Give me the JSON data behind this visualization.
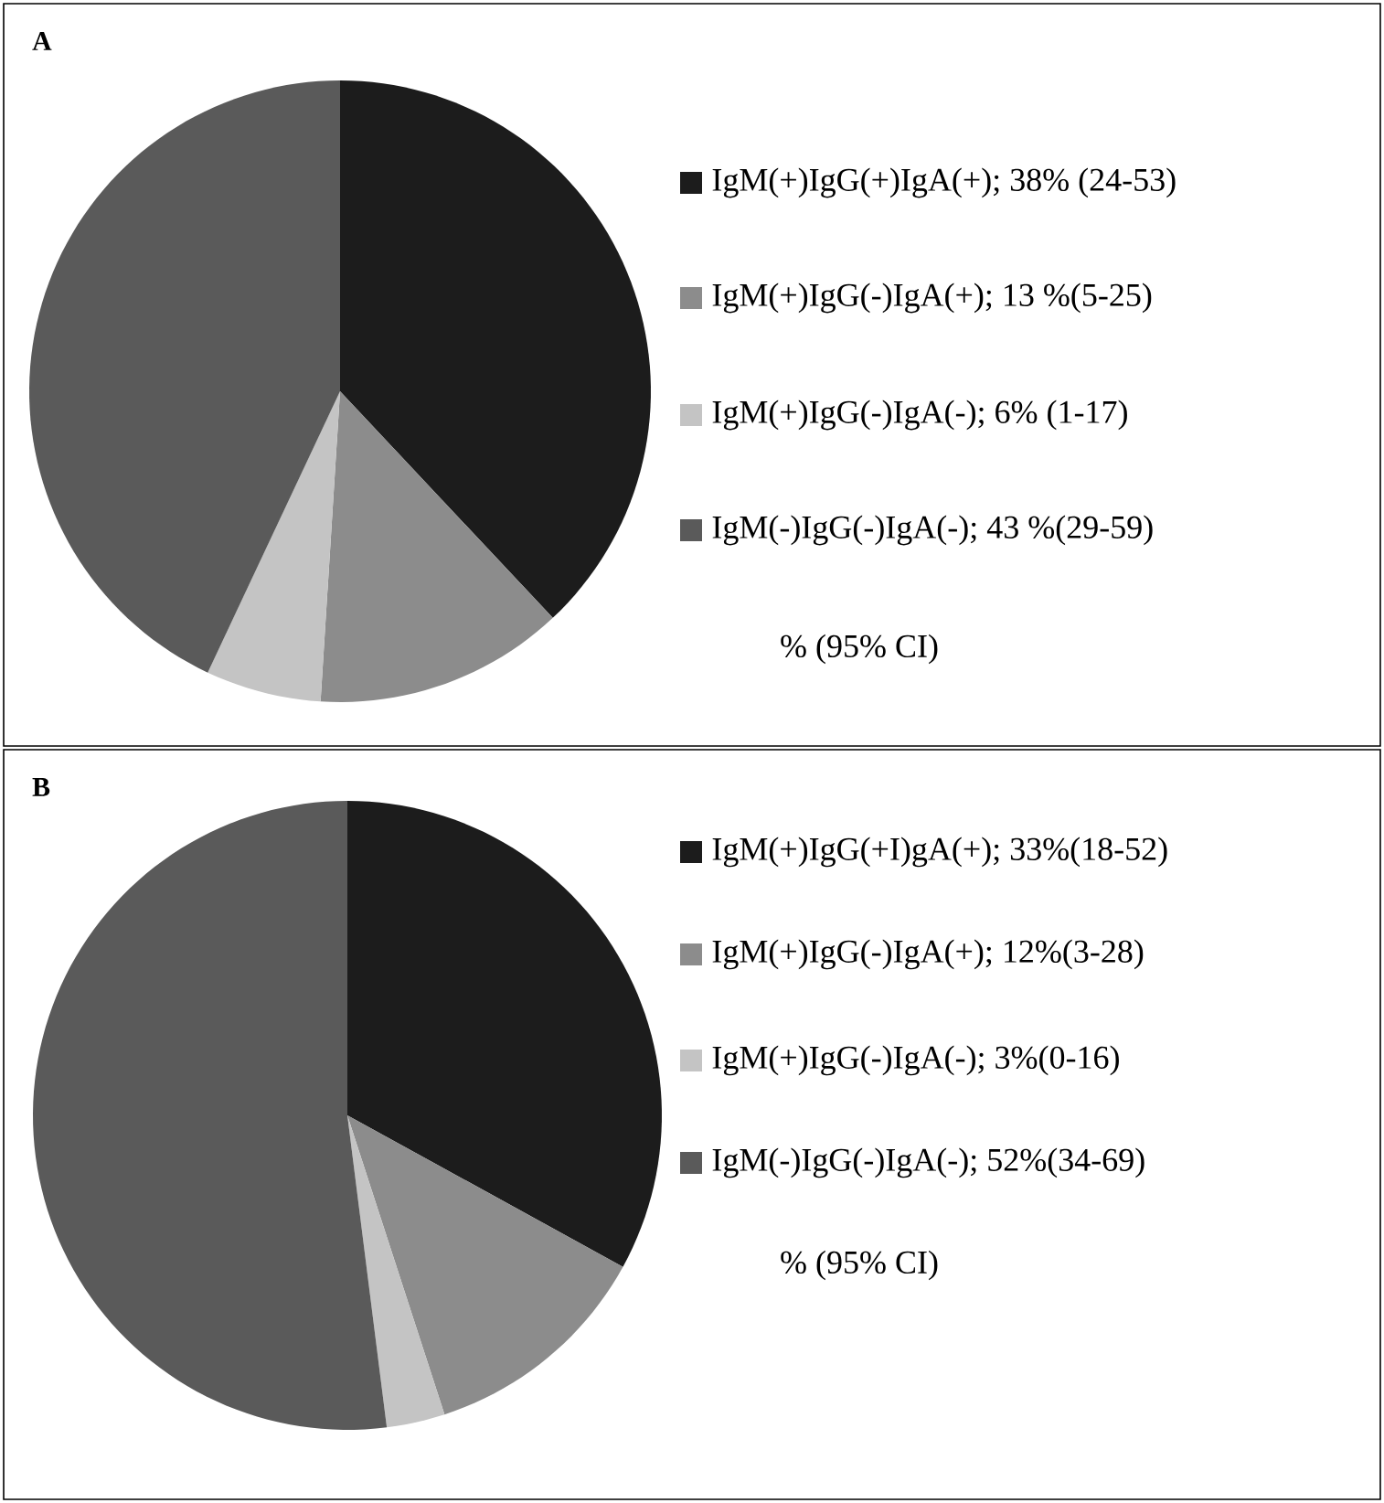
{
  "chart_data": [
    {
      "type": "pie",
      "title": "A",
      "categories": [
        "IgM(+)IgG(+)IgA(+); 38% (24-53)",
        "IgM(+)IgG(-)IgA(+); 13 %(5-25)",
        "IgM(+)IgG(-)IgA(-); 6% (1-17)",
        "IgM(-)IgG(-)IgA(-); 43 %(29-59)"
      ],
      "values": [
        38,
        13,
        6,
        43
      ],
      "colors": [
        "#1c1c1c",
        "#8c8c8c",
        "#c4c4c4",
        "#5a5a5a"
      ],
      "legend": "right",
      "annotations": [
        "% (95% CI)"
      ]
    },
    {
      "type": "pie",
      "title": "B",
      "categories": [
        "IgM(+)IgG(+I)gA(+); 33%(18-52)",
        "IgM(+)IgG(-)IgA(+); 12%(3-28)",
        "IgM(+)IgG(-)IgA(-); 3%(0-16)",
        "IgM(-)IgG(-)IgA(-); 52%(34-69)"
      ],
      "values": [
        33,
        12,
        3,
        52
      ],
      "colors": [
        "#1c1c1c",
        "#8c8c8c",
        "#c4c4c4",
        "#5a5a5a"
      ],
      "legend": "right",
      "annotations": [
        "% (95% CI)"
      ]
    }
  ]
}
